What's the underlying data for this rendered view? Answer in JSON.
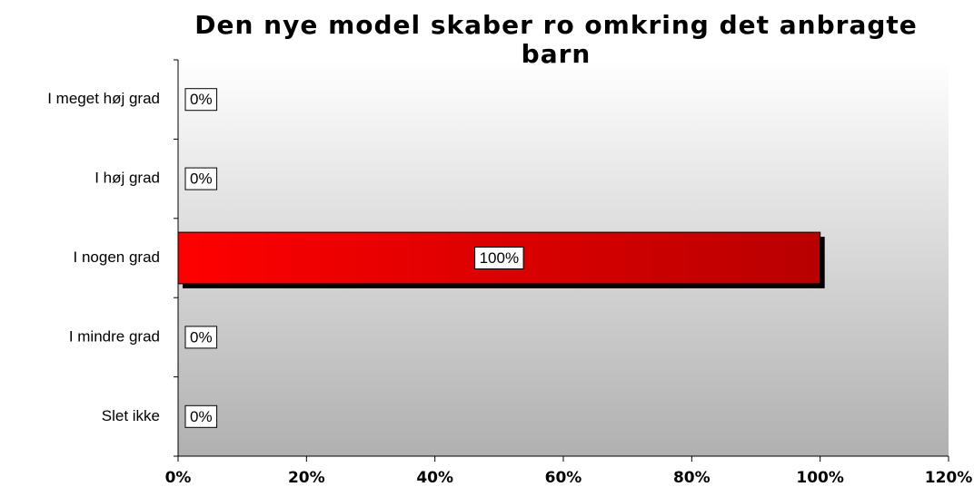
{
  "chart_data": {
    "type": "bar",
    "orientation": "horizontal",
    "title": "Den nye model skaber ro omkring det anbragte barn",
    "categories": [
      "I meget høj grad",
      "I høj grad",
      "I nogen grad",
      "I mindre grad",
      "Slet ikke"
    ],
    "values": [
      0,
      0,
      100,
      0,
      0
    ],
    "value_labels": [
      "0%",
      "0%",
      "100%",
      "0%",
      "0%"
    ],
    "color": "#ff0000",
    "xlim": [
      0,
      120
    ],
    "xticks": [
      {
        "value": 0,
        "label": "0%"
      },
      {
        "value": 20,
        "label": "20%"
      },
      {
        "value": 40,
        "label": "40%"
      },
      {
        "value": 60,
        "label": "60%"
      },
      {
        "value": 80,
        "label": "80%"
      },
      {
        "value": 100,
        "label": "100%"
      },
      {
        "value": 120,
        "label": "120%"
      }
    ]
  }
}
